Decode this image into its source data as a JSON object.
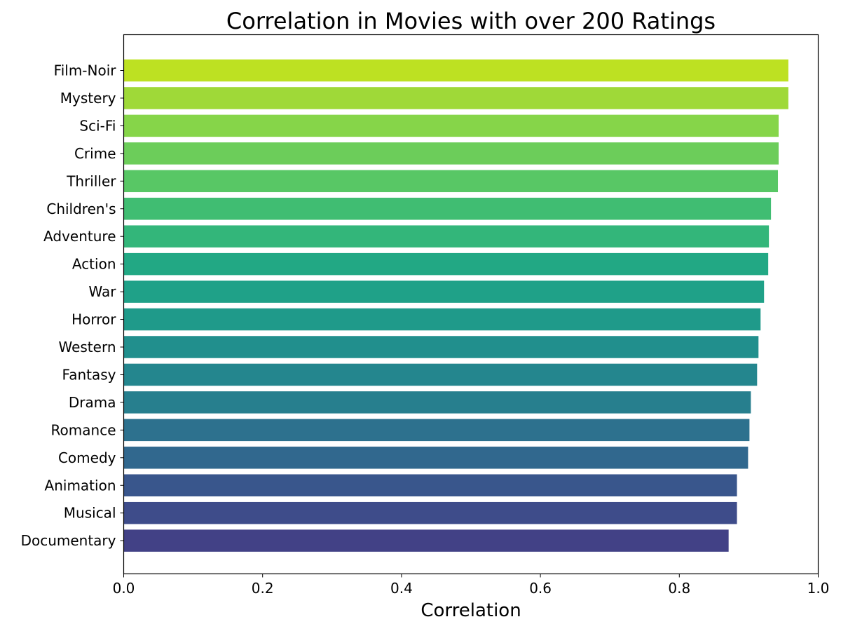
{
  "chart_data": {
    "type": "bar",
    "orientation": "horizontal",
    "title": "Correlation in Movies with over 200 Ratings",
    "xlabel": "Correlation",
    "ylabel": "",
    "xlim": [
      0,
      1
    ],
    "xticks": [
      "0.0",
      "0.2",
      "0.4",
      "0.6",
      "0.8",
      "1.0"
    ],
    "grid": false,
    "colormap": "viridis",
    "categories": [
      "Film-Noir",
      "Mystery",
      "Sci-Fi",
      "Crime",
      "Thriller",
      "Children's",
      "Adventure",
      "Action",
      "War",
      "Horror",
      "Western",
      "Fantasy",
      "Drama",
      "Romance",
      "Comedy",
      "Animation",
      "Musical",
      "Documentary"
    ],
    "values": [
      0.957,
      0.957,
      0.943,
      0.943,
      0.942,
      0.932,
      0.929,
      0.928,
      0.922,
      0.917,
      0.914,
      0.912,
      0.903,
      0.901,
      0.899,
      0.883,
      0.883,
      0.871
    ],
    "colors": [
      "#bde122",
      "#9fd938",
      "#86d549",
      "#6ccd5a",
      "#58c765",
      "#40bd72",
      "#33b67a",
      "#22a884",
      "#1fa188",
      "#1f9a8a",
      "#218f8d",
      "#24868e",
      "#277f8e",
      "#2d718e",
      "#31688e",
      "#39568c",
      "#3e4c8a",
      "#424186"
    ]
  }
}
